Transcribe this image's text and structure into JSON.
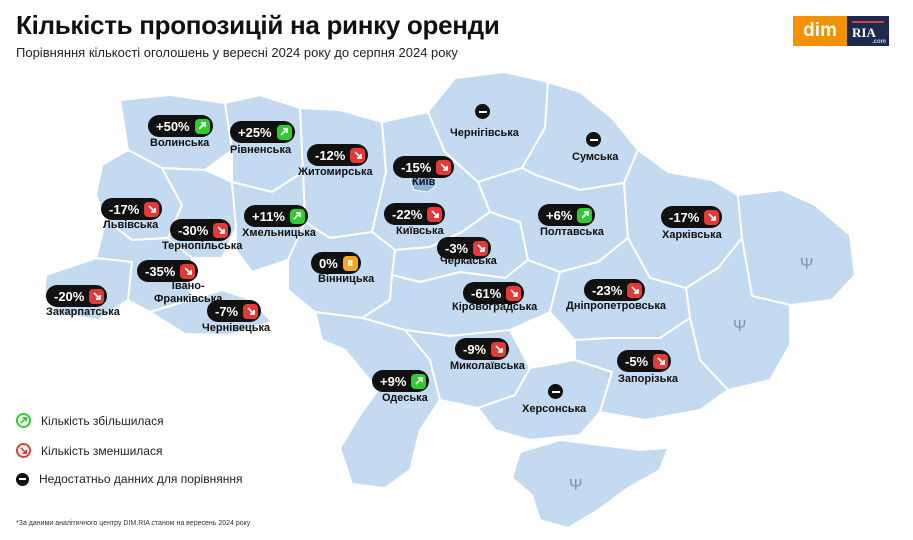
{
  "title": "Кількість пропозицій на ринку оренди",
  "subtitle": "Порівняння кількості оголошень у вересні 2024 року до серпня 2024 року",
  "logo": {
    "left": "dim",
    "right": "RIA",
    "suffix": ".com"
  },
  "colors": {
    "map_fill": "#c3daf1",
    "map_border": "#ffffff",
    "increase": "#2ecc2e",
    "decrease": "#e53935",
    "neutral": "#f5a623",
    "badge_bg": "#111111"
  },
  "regions": [
    {
      "name": "Волинська",
      "change": "+50%",
      "trend": "up"
    },
    {
      "name": "Рівненська",
      "change": "+25%",
      "trend": "up"
    },
    {
      "name": "Житомирська",
      "change": "-12%",
      "trend": "down"
    },
    {
      "name": "Чернігівська",
      "change": "",
      "trend": "na"
    },
    {
      "name": "Сумська",
      "change": "",
      "trend": "na"
    },
    {
      "name": "Київ",
      "change": "-15%",
      "trend": "down"
    },
    {
      "name": "Київська",
      "change": "-22%",
      "trend": "down"
    },
    {
      "name": "Львівська",
      "change": "-17%",
      "trend": "down"
    },
    {
      "name": "Тернопільська",
      "change": "-30%",
      "trend": "down"
    },
    {
      "name": "Хмельницька",
      "change": "+11%",
      "trend": "up"
    },
    {
      "name": "Полтавська",
      "change": "+6%",
      "trend": "up"
    },
    {
      "name": "Харківська",
      "change": "-17%",
      "trend": "down"
    },
    {
      "name": "Черкаська",
      "change": "-3%",
      "trend": "down"
    },
    {
      "name": "Вінницька",
      "change": "0%",
      "trend": "flat"
    },
    {
      "name": "Івано-Франківська",
      "change": "-35%",
      "trend": "down"
    },
    {
      "name": "Закарпатська",
      "change": "-20%",
      "trend": "down"
    },
    {
      "name": "Чернівецька",
      "change": "-7%",
      "trend": "down"
    },
    {
      "name": "Кіровоградська",
      "change": "-61%",
      "trend": "down"
    },
    {
      "name": "Дніпропетровська",
      "change": "-23%",
      "trend": "down"
    },
    {
      "name": "Миколаївська",
      "change": "-9%",
      "trend": "down"
    },
    {
      "name": "Одеська",
      "change": "+9%",
      "trend": "up"
    },
    {
      "name": "Запорізька",
      "change": "-5%",
      "trend": "down"
    },
    {
      "name": "Херсонська",
      "change": "",
      "trend": "na"
    }
  ],
  "legend": [
    {
      "label": "Кількість збільшилася",
      "icon": "arrow-up-icon"
    },
    {
      "label": "Кількість зменшилася",
      "icon": "arrow-down-icon"
    },
    {
      "label": "Недостатньо данних для порівняння",
      "icon": "minus-icon"
    }
  ],
  "footnote": "*За даними аналітичного центру DIM.RIA станом на вересень 2024 року"
}
